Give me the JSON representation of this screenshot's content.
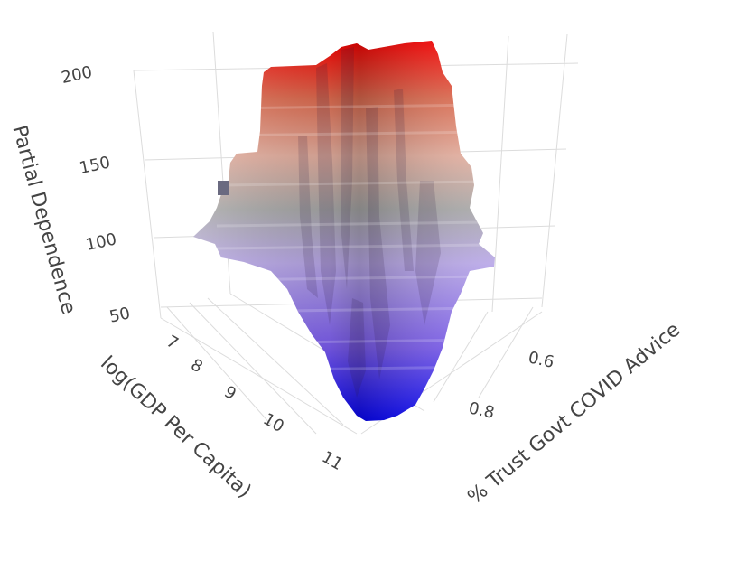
{
  "chart_data": {
    "type": "surface3d",
    "x_axis": {
      "label": "log(GDP Per Capita)",
      "ticks": [
        "7",
        "8",
        "9",
        "10",
        "11"
      ],
      "range": [
        7,
        11.3
      ]
    },
    "y_axis": {
      "label": "% Trust Govt COVID Advice",
      "ticks": [
        "0.6",
        "0.8"
      ],
      "range": [
        0.5,
        0.95
      ]
    },
    "z_axis": {
      "label": "Partial Dependence",
      "ticks": [
        "50",
        "100",
        "150",
        "200"
      ],
      "range": [
        40,
        215
      ]
    },
    "colorscale": [
      "#0000ff",
      "#7b5cf0",
      "#b9a8e8",
      "#a9a9a9",
      "#e6b0a0",
      "#e06c50",
      "#ff0000"
    ],
    "grid": true,
    "legend": "none",
    "surface_z_estimated": {
      "x": [
        7,
        8,
        9,
        10,
        11
      ],
      "y": [
        0.55,
        0.6,
        0.7,
        0.8,
        0.9
      ],
      "z": [
        [
          105,
          110,
          130,
          200,
          212
        ],
        [
          100,
          115,
          150,
          190,
          205
        ],
        [
          95,
          110,
          140,
          175,
          195
        ],
        [
          80,
          90,
          120,
          150,
          180
        ],
        [
          50,
          45,
          60,
          90,
          120
        ]
      ]
    }
  }
}
